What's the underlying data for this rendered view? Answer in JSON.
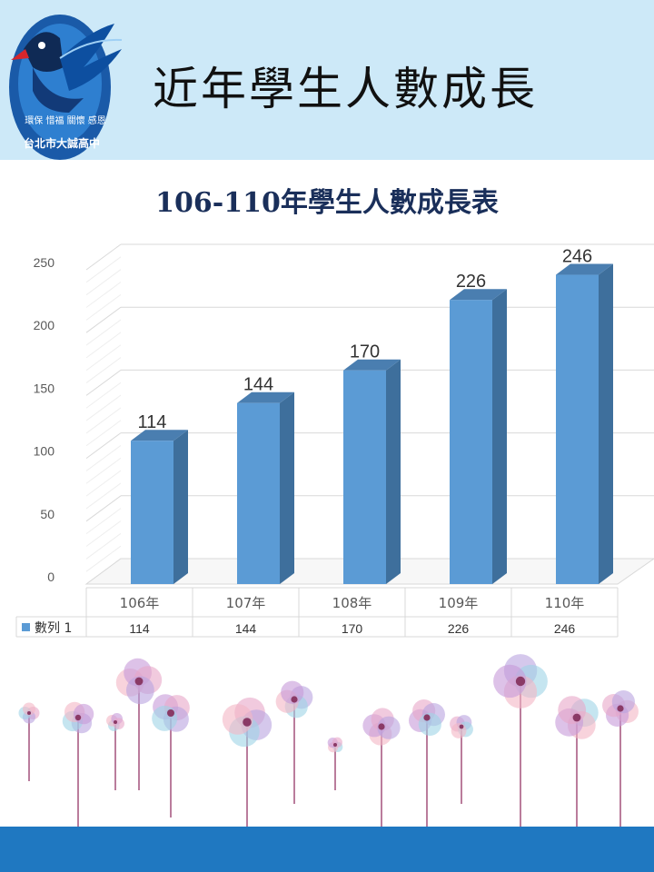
{
  "page": {
    "title": "近年學生人數成長",
    "logo_text": "台北市大誠高中",
    "logo_motto": "環保 惜福 關懷 感恩"
  },
  "colors": {
    "header_bg": "#cde9f8",
    "bar_front": "#5b9bd5",
    "bar_side": "#3e6f9c",
    "bar_top": "#4a7eb0",
    "footer": "#1f78c1"
  },
  "chart_data": {
    "type": "bar",
    "title": "106-110年學生人數成長表",
    "categories": [
      "106年",
      "107年",
      "108年",
      "109年",
      "110年"
    ],
    "series": [
      {
        "name": "數列 1",
        "values": [
          114,
          144,
          170,
          226,
          246
        ]
      }
    ],
    "ylim": [
      0,
      250
    ],
    "yticks": [
      0,
      50,
      100,
      150,
      200,
      250
    ],
    "grid": true,
    "legend": "data-table-bottom",
    "data_table": true
  }
}
